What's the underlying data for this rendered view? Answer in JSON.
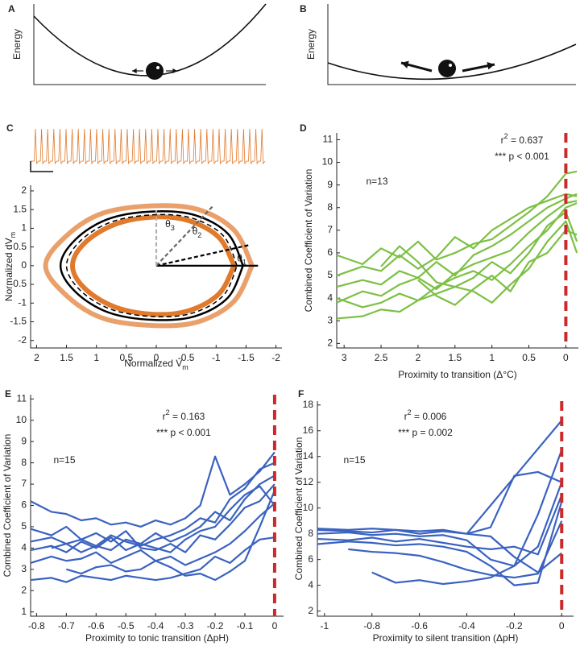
{
  "chart_data": [
    {
      "type": "schematic",
      "label": "A",
      "ylabel": "Energy"
    },
    {
      "type": "schematic",
      "label": "B",
      "ylabel": "Energy"
    },
    {
      "type": "phase",
      "label": "C",
      "smooth": true,
      "xlabel": [
        {
          "text": "Normalized V"
        },
        {
          "text": "m",
          "sub": true
        }
      ],
      "ylabel": [
        {
          "text": "Normalized dV"
        },
        {
          "text": "m",
          "sub": true
        }
      ],
      "xlim": [
        2.1,
        -2.1
      ],
      "ylim": [
        -2.2,
        2.15
      ],
      "xticks": [
        2,
        1.5,
        1,
        0.5,
        0,
        -0.5,
        -1,
        -1.5,
        -2
      ],
      "yticks": [
        -2,
        -1.5,
        -1,
        -0.5,
        0,
        0.5,
        1,
        1.5,
        2
      ],
      "series": [
        {
          "color": "#eaa06a",
          "line_width": 6,
          "x": [
            -1.6,
            -1.3,
            -0.7,
            0.05,
            0.9,
            1.5,
            1.85,
            1.5,
            0.9,
            0.05,
            -0.7,
            -1.3,
            -1.6
          ],
          "values": [
            0,
            0.95,
            1.5,
            1.6,
            1.4,
            0.8,
            0,
            -0.8,
            -1.4,
            -1.6,
            -1.5,
            -0.95,
            0
          ]
        },
        {
          "color": "#e07a2c",
          "line_width": 6,
          "x": [
            -1.3,
            -1.05,
            -0.55,
            0.05,
            0.7,
            1.2,
            1.4,
            1.2,
            0.7,
            0.05,
            -0.55,
            -1.05,
            -1.3
          ],
          "values": [
            0,
            0.75,
            1.2,
            1.3,
            1.1,
            0.6,
            0,
            -0.6,
            -1.1,
            -1.3,
            -1.2,
            -0.75,
            0
          ]
        },
        {
          "color": "#000000",
          "line_width": 2.5,
          "x": [
            -1.45,
            -1.2,
            -0.65,
            0.05,
            0.8,
            1.35,
            1.6,
            1.35,
            0.8,
            0.05,
            -0.65,
            -1.2,
            -1.45
          ],
          "values": [
            0,
            0.85,
            1.35,
            1.45,
            1.25,
            0.7,
            0,
            -0.7,
            -1.25,
            -1.45,
            -1.35,
            -0.85,
            0
          ]
        },
        {
          "color": "#000000",
          "line_width": 1.5,
          "dash": true,
          "x": [
            -1.35,
            -1.12,
            -0.6,
            0.05,
            0.75,
            1.27,
            1.5,
            1.27,
            0.75,
            0.05,
            -0.6,
            -1.12,
            -1.35
          ],
          "values": [
            0,
            0.8,
            1.27,
            1.36,
            1.17,
            0.66,
            0,
            -0.66,
            -1.17,
            -1.36,
            -1.27,
            -0.8,
            0
          ]
        }
      ],
      "rays": [
        {
          "x": -1.7,
          "y": 0,
          "color": "#000000",
          "dash": false,
          "label": [
            {
              "text": "θ"
            },
            {
              "text": "1",
              "sub": true
            }
          ]
        },
        {
          "x": -1.55,
          "y": 0.55,
          "color": "#000000",
          "dash": true
        },
        {
          "x": -0.95,
          "y": 1.6,
          "color": "#666666",
          "dash": true,
          "label": [
            {
              "text": "θ"
            },
            {
              "text": "2",
              "sub": true
            }
          ]
        },
        {
          "x": 0,
          "y": 1.55,
          "color": "#b0b0b0",
          "dash": true,
          "label": [
            {
              "text": "θ"
            },
            {
              "text": "3",
              "sub": true
            }
          ]
        }
      ]
    },
    {
      "type": "line",
      "label": "D",
      "xlabel": [
        {
          "text": "Proximity to transition (Δ°C)"
        }
      ],
      "ylabel": [
        {
          "text": "Combined Coefficient of Variation"
        }
      ],
      "xlim": [
        3.1,
        -0.17
      ],
      "ylim": [
        1.8,
        11.3
      ],
      "xticks": [
        3,
        2.5,
        2,
        1.5,
        1,
        0.5,
        0
      ],
      "yticks": [
        2,
        3,
        4,
        5,
        6,
        7,
        8,
        9,
        10,
        11
      ],
      "vline": {
        "x": 0,
        "color": "#cc2a2a"
      },
      "annotations": [
        [
          {
            "text": "r"
          },
          {
            "text": "2",
            "sup": true
          },
          {
            "text": " = 0.637"
          }
        ],
        [
          {
            "text": "*** p < 0.001"
          }
        ],
        [
          {
            "text": "n=13"
          }
        ]
      ],
      "x": [
        3.1,
        2.75,
        2.5,
        2.25,
        2,
        1.75,
        1.5,
        1.25,
        1,
        0.75,
        0.5,
        0.25,
        0,
        -0.15
      ],
      "series": [
        {
          "color": "#7cc043",
          "values": [
            5.9,
            5.5,
            6.2,
            5.8,
            6.5,
            5.7,
            6.0,
            6.4,
            6.6,
            7.2,
            7.8,
            8.5,
            9.5,
            9.6
          ]
        },
        {
          "color": "#7cc043",
          "values": [
            5.0,
            5.4,
            5.2,
            5.9,
            5.3,
            5.8,
            6.7,
            6.2,
            7.0,
            7.5,
            8.0,
            8.3,
            8.6,
            8.5
          ]
        },
        {
          "color": "#7cc043",
          "values": [
            4.5,
            4.8,
            4.6,
            5.2,
            4.9,
            5.6,
            5.0,
            5.9,
            6.3,
            6.8,
            7.4,
            8.0,
            8.4,
            8.6
          ]
        },
        {
          "color": "#7cc043",
          "values": [
            3.8,
            4.3,
            4.1,
            4.6,
            4.9,
            4.4,
            5.1,
            5.5,
            5.8,
            6.1,
            6.9,
            7.6,
            8.2,
            8.3
          ]
        },
        {
          "color": "#7cc043",
          "values": [
            null,
            null,
            5.4,
            6.3,
            5.6,
            4.7,
            4.5,
            4.9,
            5.6,
            5.1,
            6.0,
            7.2,
            7.8,
            6.5
          ]
        },
        {
          "color": "#7cc043",
          "values": [
            3.1,
            3.2,
            3.5,
            3.4,
            3.9,
            4.2,
            4.5,
            4.3,
            3.8,
            4.6,
            5.3,
            6.5,
            7.4,
            6.0
          ]
        },
        {
          "color": "#7cc043",
          "values": [
            4.0,
            3.6,
            3.8,
            4.2,
            3.9,
            4.5,
            4.9,
            5.2,
            4.8,
            5.5,
            6.3,
            7.0,
            8.0,
            8.2
          ]
        },
        {
          "color": "#7cc043",
          "values": [
            null,
            null,
            null,
            null,
            4.8,
            4.1,
            3.7,
            4.4,
            5.0,
            4.3,
            5.6,
            6.0,
            7.0,
            6.8
          ]
        }
      ]
    },
    {
      "type": "line",
      "label": "E",
      "xlabel": [
        {
          "text": "Proximity to tonic transition (ΔpH)"
        }
      ],
      "ylabel": [
        {
          "text": "Combined Coefficient of Variation"
        }
      ],
      "xlim": [
        -0.82,
        0.03
      ],
      "ylim": [
        0.8,
        11.2
      ],
      "xticks": [
        -0.8,
        -0.7,
        -0.6,
        -0.5,
        -0.4,
        -0.3,
        -0.2,
        -0.1,
        0
      ],
      "yticks": [
        1,
        2,
        3,
        4,
        5,
        6,
        7,
        8,
        9,
        10,
        11
      ],
      "vline": {
        "x": 0,
        "color": "#cc2a2a"
      },
      "annotations": [
        [
          {
            "text": "r"
          },
          {
            "text": "2",
            "sup": true
          },
          {
            "text": " = 0.163"
          }
        ],
        [
          {
            "text": "*** p < 0.001"
          }
        ],
        [
          {
            "text": "n=15"
          }
        ]
      ],
      "x": [
        -0.82,
        -0.75,
        -0.7,
        -0.65,
        -0.6,
        -0.55,
        -0.5,
        -0.45,
        -0.4,
        -0.35,
        -0.3,
        -0.25,
        -0.2,
        -0.15,
        -0.1,
        -0.05,
        0
      ],
      "series": [
        {
          "color": "#3a62c0",
          "values": [
            6.2,
            5.7,
            5.6,
            5.3,
            5.4,
            5.1,
            5.2,
            5.0,
            5.3,
            5.1,
            5.4,
            6.0,
            8.3,
            6.5,
            7.0,
            7.6,
            8.5
          ]
        },
        {
          "color": "#3a62c0",
          "values": [
            4.3,
            4.5,
            4.2,
            4.4,
            4.1,
            4.6,
            4.3,
            4.1,
            4.4,
            4.6,
            4.9,
            5.4,
            5.2,
            6.3,
            6.8,
            7.7,
            8.0
          ]
        },
        {
          "color": "#3a62c0",
          "values": [
            3.9,
            4.1,
            3.8,
            4.3,
            4.0,
            4.5,
            3.9,
            4.2,
            4.7,
            4.3,
            4.6,
            5.0,
            5.7,
            5.3,
            6.3,
            7.0,
            7.4
          ]
        },
        {
          "color": "#3a62c0",
          "values": [
            4.9,
            4.6,
            5.0,
            4.4,
            4.7,
            4.3,
            4.8,
            4.0,
            3.9,
            4.2,
            3.8,
            4.6,
            4.4,
            5.1,
            5.9,
            6.2,
            7.0
          ]
        },
        {
          "color": "#3a62c0",
          "values": [
            3.3,
            3.6,
            3.4,
            3.5,
            3.8,
            3.3,
            3.6,
            3.9,
            3.4,
            3.6,
            3.2,
            3.5,
            3.8,
            4.2,
            4.8,
            5.5,
            6.1
          ]
        },
        {
          "color": "#3a62c0",
          "values": [
            2.5,
            2.6,
            2.4,
            2.7,
            2.6,
            2.5,
            2.7,
            2.6,
            2.5,
            2.6,
            2.8,
            3.0,
            3.6,
            3.3,
            3.9,
            4.4,
            4.5
          ]
        },
        {
          "color": "#3a62c0",
          "values": [
            null,
            null,
            3.0,
            2.8,
            3.1,
            3.2,
            2.9,
            3.0,
            3.4,
            3.1,
            2.7,
            2.8,
            2.5,
            2.9,
            3.4,
            5.0,
            6.7
          ]
        },
        {
          "color": "#3a62c0",
          "values": [
            null,
            4.0,
            4.2,
            3.8,
            4.1,
            3.9,
            4.4,
            4.2,
            4.0,
            3.8,
            4.4,
            4.8,
            5.0,
            5.8,
            6.5,
            6.9,
            6.0
          ]
        }
      ]
    },
    {
      "type": "line",
      "label": "F",
      "xlabel": [
        {
          "text": "Proximity to silent transition (ΔpH)"
        }
      ],
      "ylabel": [
        {
          "text": "Combined Coefficient of Variation"
        }
      ],
      "xlim": [
        -1.03,
        0.05
      ],
      "ylim": [
        1.6,
        18.3
      ],
      "xticks": [
        -1,
        -0.8,
        -0.6,
        -0.4,
        -0.2,
        0
      ],
      "yticks": [
        2,
        4,
        6,
        8,
        10,
        12,
        14,
        16,
        18
      ],
      "vline": {
        "x": 0,
        "color": "#cc2a2a"
      },
      "annotations": [
        [
          {
            "text": "r"
          },
          {
            "text": "2",
            "sup": true
          },
          {
            "text": " = 0.006"
          }
        ],
        [
          {
            "text": "*** p = 0.002"
          }
        ],
        [
          {
            "text": "n=15"
          }
        ]
      ],
      "x": [
        -1.03,
        -0.9,
        -0.8,
        -0.7,
        -0.6,
        -0.5,
        -0.4,
        -0.3,
        -0.2,
        -0.1,
        0
      ],
      "series": [
        {
          "color": "#3a62c0",
          "values": [
            8.3,
            8.2,
            8.1,
            8.3,
            8.0,
            8.2,
            8.0,
            8.5,
            12.5,
            12.8,
            12.0
          ]
        },
        {
          "color": "#3a62c0",
          "values": [
            8.0,
            8.1,
            7.9,
            8.0,
            7.8,
            7.9,
            7.5,
            6.0,
            5.5,
            9.5,
            14.5
          ]
        },
        {
          "color": "#3a62c0",
          "values": [
            7.6,
            7.5,
            7.7,
            7.4,
            7.6,
            7.3,
            7.0,
            6.8,
            7.0,
            6.4,
            11.0
          ]
        },
        {
          "color": "#3a62c0",
          "values": [
            7.2,
            7.4,
            7.3,
            7.1,
            7.2,
            7.0,
            6.6,
            5.5,
            4.0,
            4.2,
            10.5
          ]
        },
        {
          "color": "#3a62c0",
          "values": [
            null,
            6.8,
            6.6,
            6.5,
            6.3,
            5.8,
            5.2,
            4.8,
            4.6,
            4.9,
            9.0
          ]
        },
        {
          "color": "#3a62c0",
          "values": [
            null,
            null,
            5.0,
            4.2,
            4.4,
            4.1,
            4.3,
            4.6,
            5.5,
            7.0,
            12.0
          ]
        },
        {
          "color": "#3a62c0",
          "values": [
            8.4,
            8.3,
            8.4,
            8.3,
            8.2,
            8.3,
            8.0,
            7.8,
            6.2,
            5.0,
            6.5
          ]
        },
        {
          "color": "#3a62c0",
          "values": [
            null,
            null,
            null,
            null,
            null,
            null,
            8.0,
            10.2,
            12.4,
            14.6,
            16.8
          ]
        }
      ]
    }
  ]
}
